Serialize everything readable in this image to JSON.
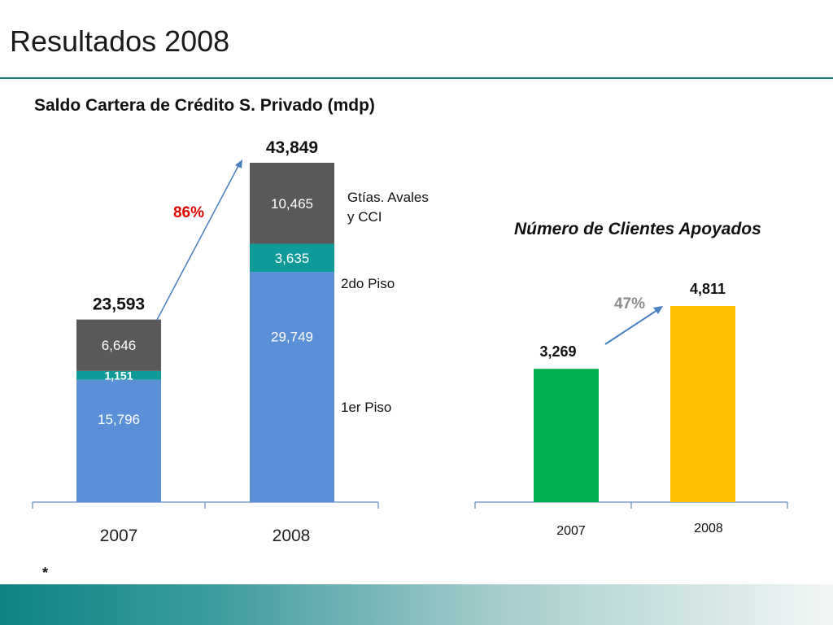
{
  "slide": {
    "title": "Resultados 2008",
    "footnote": "*"
  },
  "colors": {
    "accent": "#1f7f82",
    "primer_piso": "#5b8fd8",
    "segundo_piso": "#0f9a9a",
    "garantias": "#595959",
    "clientes_2007": "#00b050",
    "clientes_2008": "#ffc000",
    "growth_red": "#e00000",
    "growth_gray": "#8c8c8c",
    "arrow": "#4a7fc1"
  },
  "chart_data": [
    {
      "type": "bar",
      "stacked": true,
      "title": "Saldo Cartera de Crédito S. Privado (mdp)",
      "categories": [
        "2007",
        "2008"
      ],
      "series": [
        {
          "name": "1er Piso",
          "values": [
            15796,
            29749
          ],
          "labels": [
            "15,796",
            "29,749"
          ]
        },
        {
          "name": "2do Piso",
          "values": [
            1151,
            3635
          ],
          "labels": [
            "1,151",
            "3,635"
          ]
        },
        {
          "name": "Gtías. Avales y CCI",
          "values": [
            6646,
            10465
          ],
          "labels": [
            "6,646",
            "10,465"
          ]
        }
      ],
      "totals": [
        23593,
        43849
      ],
      "total_labels": [
        "23,593",
        "43,849"
      ],
      "growth_label": "86%",
      "legend_placement": "right",
      "ylim": [
        0,
        47000
      ],
      "grid": false
    },
    {
      "type": "bar",
      "title": "Número de Clientes Apoyados",
      "categories": [
        "2007",
        "2008"
      ],
      "values": [
        3269,
        4811
      ],
      "value_labels": [
        "3,269",
        "4,811"
      ],
      "growth_label": "47%",
      "ylim": [
        0,
        5500
      ],
      "grid": false
    }
  ]
}
